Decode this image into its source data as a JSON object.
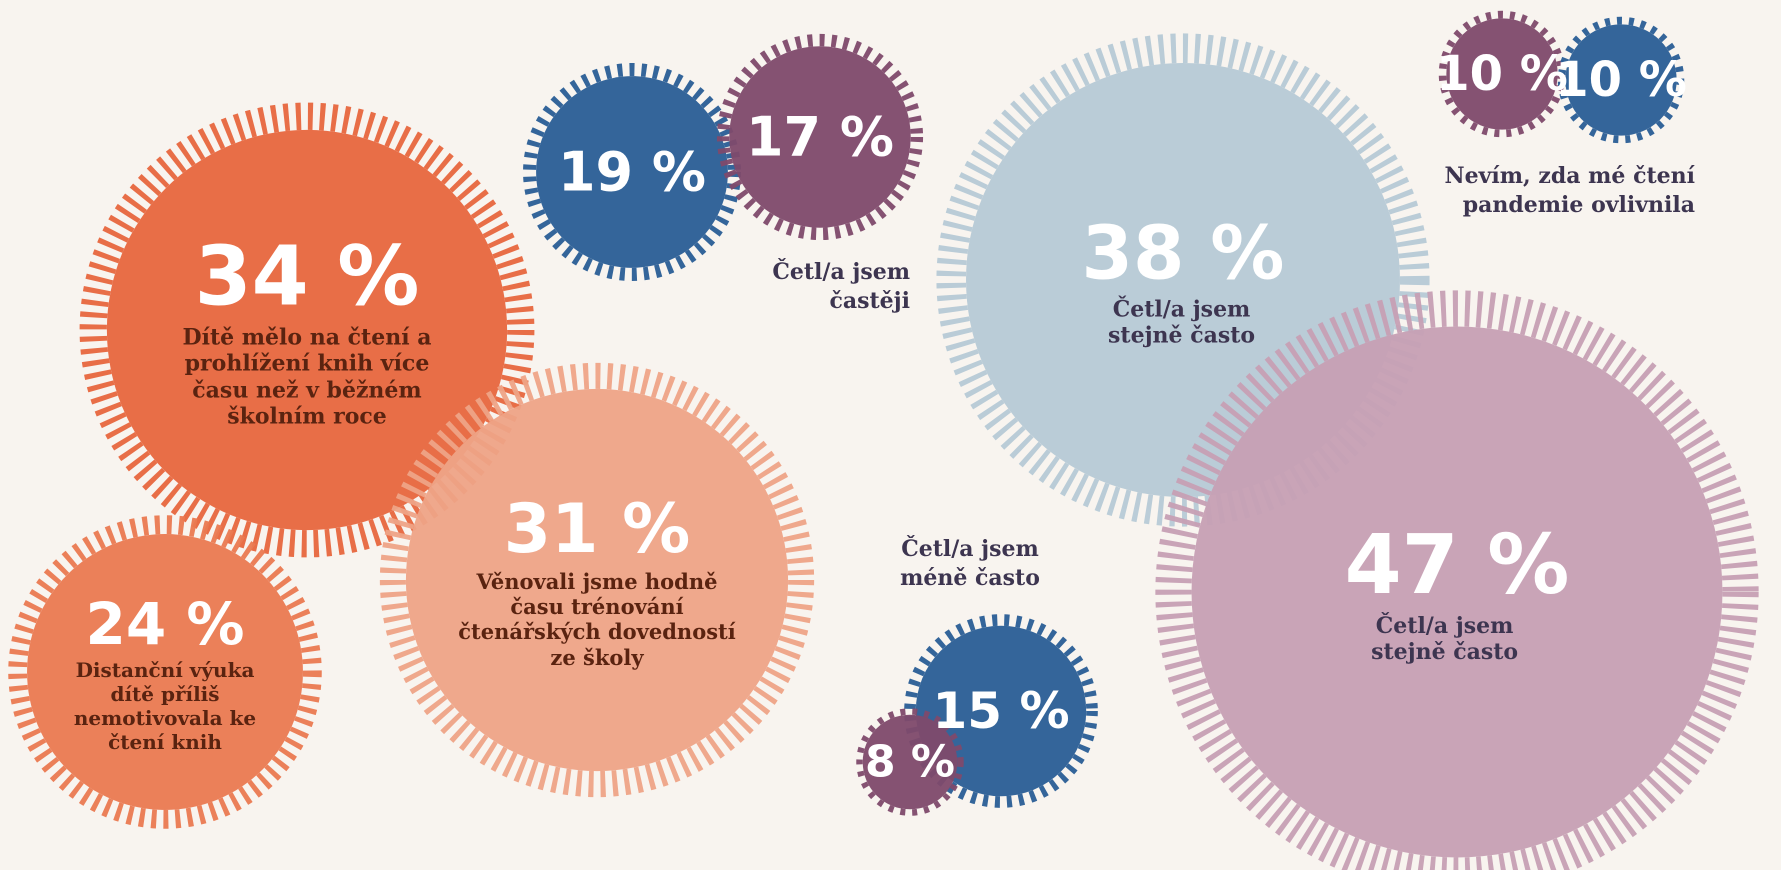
{
  "bubbles": [
    {
      "value": 34,
      "label": "34 %",
      "text": "Dítě mělo na čtení a prohlížení knih více času než v běžném školním roce",
      "color": "#e8673f"
    },
    {
      "value": 24,
      "label": "24 %",
      "text": "Distanční výuka dítě příliš nemotivovala ke čtení knih",
      "color": "#eb7a52"
    },
    {
      "value": 31,
      "label": "31 %",
      "text": "Věnovali jsme hodně času trénování čtenářských dovedností ze školy",
      "color": "#efa487"
    },
    {
      "value": 19,
      "label": "19 %",
      "color": "#2a5e96"
    },
    {
      "value": 17,
      "label": "17 %",
      "color": "#7f4a6c"
    },
    {
      "value": 38,
      "label": "38 %",
      "text": "Četl/a jsem stejně často",
      "color": "#b7cad6"
    },
    {
      "value": 47,
      "label": "47 %",
      "text": "Četl/a jsem stejně často",
      "color": "#c7a0b5"
    },
    {
      "value": 10,
      "label": "10 %",
      "color": "#7f4a6c"
    },
    {
      "value": 10,
      "label": "10 %",
      "color": "#2a5e96"
    },
    {
      "value": 15,
      "label": "15 %",
      "color": "#2a5e96"
    },
    {
      "value": 8,
      "label": "8 %",
      "color": "#7f4a6c"
    }
  ],
  "captions": [
    "Četl/a jsem častěji",
    "Nevím, zda mé čtení pandemie ovlivnila",
    "Četl/a jsem méně často"
  ]
}
